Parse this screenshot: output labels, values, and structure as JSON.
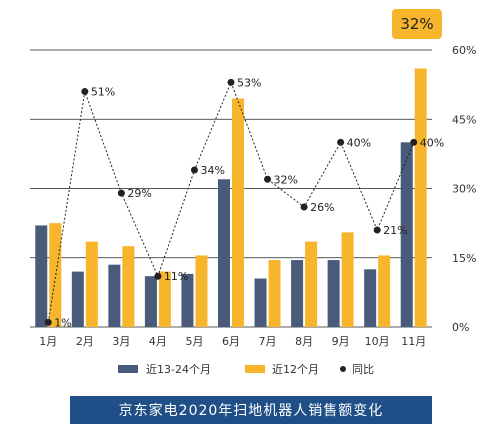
{
  "colors": {
    "series_a": "#4a5a7a",
    "series_b": "#f7b52c",
    "line": "#222222",
    "footer_bg": "#1f4f86",
    "highlight_bg": "#f7b52c",
    "grid": "#222222"
  },
  "highlight_badge": "32%",
  "footer_title": "京东家电2020年扫地机器人销售额变化",
  "chart_data": {
    "type": "bar",
    "categories": [
      "1月",
      "2月",
      "3月",
      "4月",
      "5月",
      "6月",
      "7月",
      "8月",
      "9月",
      "10月",
      "11月"
    ],
    "series": [
      {
        "name": "近13-24个月",
        "kind": "bar",
        "values": [
          22,
          12,
          13.5,
          11,
          11.5,
          32,
          10.5,
          14.5,
          14.5,
          12.5,
          40
        ]
      },
      {
        "name": "近12个月",
        "kind": "bar",
        "values": [
          22.5,
          18.5,
          17.5,
          12,
          15.5,
          49.5,
          14.5,
          18.5,
          20.5,
          15.5,
          56
        ]
      },
      {
        "name": "同比",
        "kind": "line",
        "values": [
          1,
          51,
          29,
          11,
          34,
          53,
          32,
          26,
          40,
          21,
          40
        ],
        "labels": [
          "1%",
          "51%",
          "29%",
          "11%",
          "34%",
          "53%",
          "32%",
          "26%",
          "40%",
          "21%",
          "40%"
        ]
      }
    ],
    "y_right_ticks": [
      "0%",
      "15%",
      "30%",
      "45%",
      "60%"
    ],
    "ylim": [
      0,
      60
    ],
    "legend_position": "bottom",
    "grid": true
  }
}
